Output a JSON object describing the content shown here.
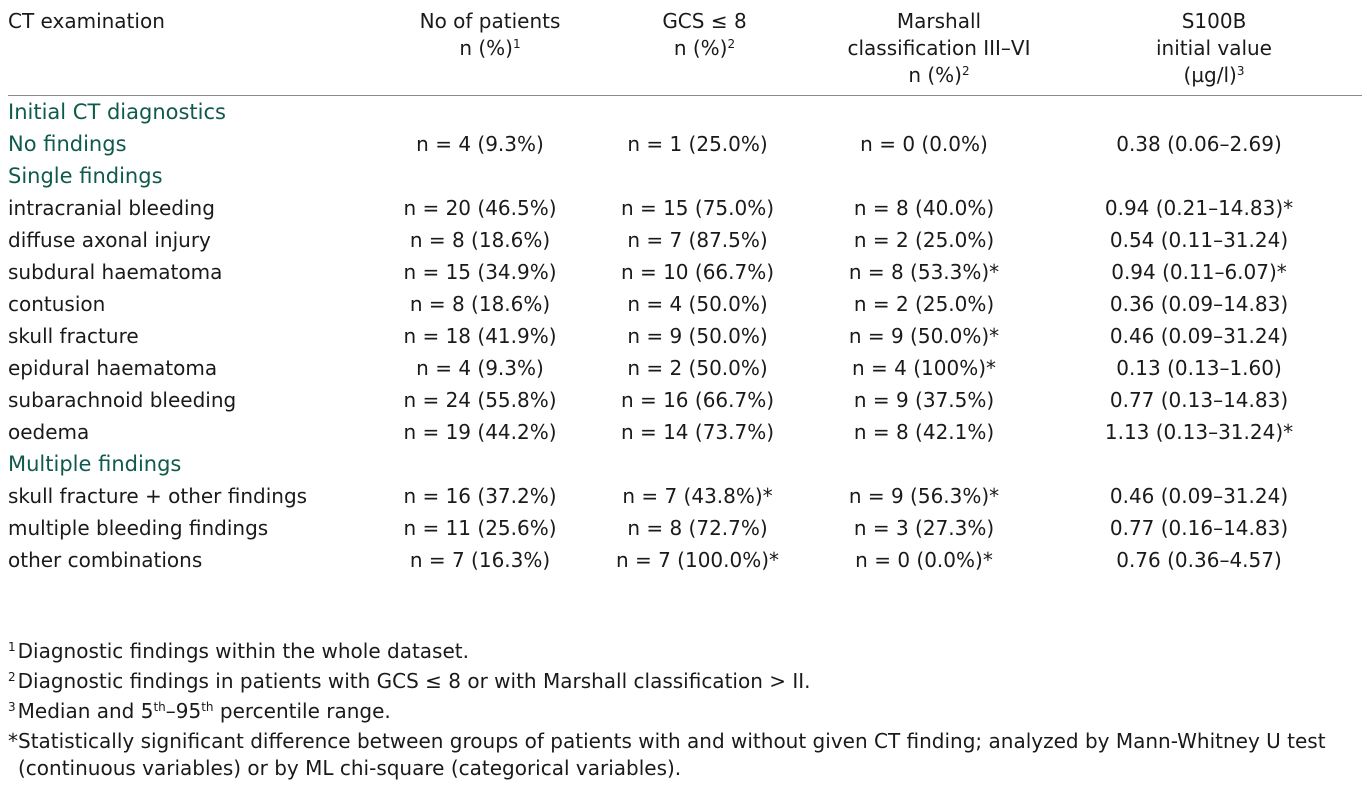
{
  "table": {
    "headers": [
      {
        "lines": [
          "CT examination"
        ],
        "sup": ""
      },
      {
        "lines": [
          "No of patients",
          "n (%)"
        ],
        "sup": "1"
      },
      {
        "lines": [
          "GCS ≤ 8",
          "n (%)"
        ],
        "sup": "2"
      },
      {
        "lines": [
          "Marshall",
          "classification III–VI",
          "n (%)"
        ],
        "sup": "2"
      },
      {
        "lines": [
          "S100B",
          "initial value",
          "(µg/l)"
        ],
        "sup": "3"
      }
    ],
    "sections": [
      {
        "title": "Initial CT diagnostics",
        "rows": [
          {
            "label": "No findings",
            "values": [
              "n = 4 (9.3%)",
              "n = 1 (25.0%)",
              "n = 0 (0.0%)",
              "0.38 (0.06–2.69)"
            ]
          }
        ]
      },
      {
        "title": "Single findings",
        "rows": [
          {
            "label": "intracranial bleeding",
            "values": [
              "n = 20 (46.5%)",
              "n = 15 (75.0%)",
              "n = 8 (40.0%)",
              "0.94 (0.21–14.83)*"
            ]
          },
          {
            "label": "diffuse axonal injury",
            "values": [
              "n = 8 (18.6%)",
              "n = 7 (87.5%)",
              "n = 2 (25.0%)",
              "0.54 (0.11–31.24)"
            ]
          },
          {
            "label": "subdural haematoma",
            "values": [
              "n = 15 (34.9%)",
              "n = 10 (66.7%)",
              "n = 8 (53.3%)*",
              "0.94 (0.11–6.07)*"
            ]
          },
          {
            "label": "contusion",
            "values": [
              "n = 8 (18.6%)",
              "n = 4 (50.0%)",
              "n = 2 (25.0%)",
              "0.36 (0.09–14.83)"
            ]
          },
          {
            "label": "skull fracture",
            "values": [
              "n = 18 (41.9%)",
              "n = 9 (50.0%)",
              "n = 9 (50.0%)*",
              "0.46 (0.09–31.24)"
            ]
          },
          {
            "label": "epidural haematoma",
            "values": [
              "n = 4 (9.3%)",
              "n = 2 (50.0%)",
              "n = 4 (100%)*",
              "0.13 (0.13–1.60)"
            ]
          },
          {
            "label": "subarachnoid bleeding",
            "values": [
              "n = 24 (55.8%)",
              "n = 16 (66.7%)",
              "n = 9 (37.5%)",
              "0.77 (0.13–14.83)"
            ]
          },
          {
            "label": "oedema",
            "values": [
              "n = 19 (44.2%)",
              "n = 14 (73.7%)",
              "n = 8 (42.1%)",
              "1.13 (0.13–31.24)*"
            ]
          }
        ]
      },
      {
        "title": "Multiple findings",
        "rows": [
          {
            "label": "skull fracture + other findings",
            "values": [
              "n = 16 (37.2%)",
              "n = 7 (43.8%)*",
              "n = 9 (56.3%)*",
              "0.46 (0.09–31.24)"
            ]
          },
          {
            "label": "multiple bleeding findings",
            "values": [
              "n = 11 (25.6%)",
              "n = 8 (72.7%)",
              "n = 3 (27.3%)",
              "0.77 (0.16–14.83)"
            ]
          },
          {
            "label": "other combinations",
            "values": [
              "n = 7 (16.3%)",
              "n = 7 (100.0%)*",
              "n = 0 (0.0%)*",
              "0.76 (0.36–4.57)"
            ]
          }
        ]
      }
    ]
  },
  "footnotes": {
    "n1": {
      "mark": "1",
      "text": "Diagnostic findings within the whole dataset."
    },
    "n2": {
      "mark": "2",
      "text": "Diagnostic findings in patients with GCS ≤ 8 or with Marshall classification > II."
    },
    "n3": {
      "mark": "3",
      "pre": "Median and 5",
      "sup_a": "th",
      "mid": "–95",
      "sup_b": "th",
      "post": " percentile range."
    },
    "star": {
      "line1": "*Statistically significant difference between groups of patients with and without given CT finding; analyzed by Mann-Whitney U test",
      "line2": "(continuous variables) or by ML chi-square (categorical variables)."
    }
  },
  "colors": {
    "section_heading": "#0f5a4b",
    "rule": "#8a8a8a",
    "text": "#1a1a1a"
  }
}
